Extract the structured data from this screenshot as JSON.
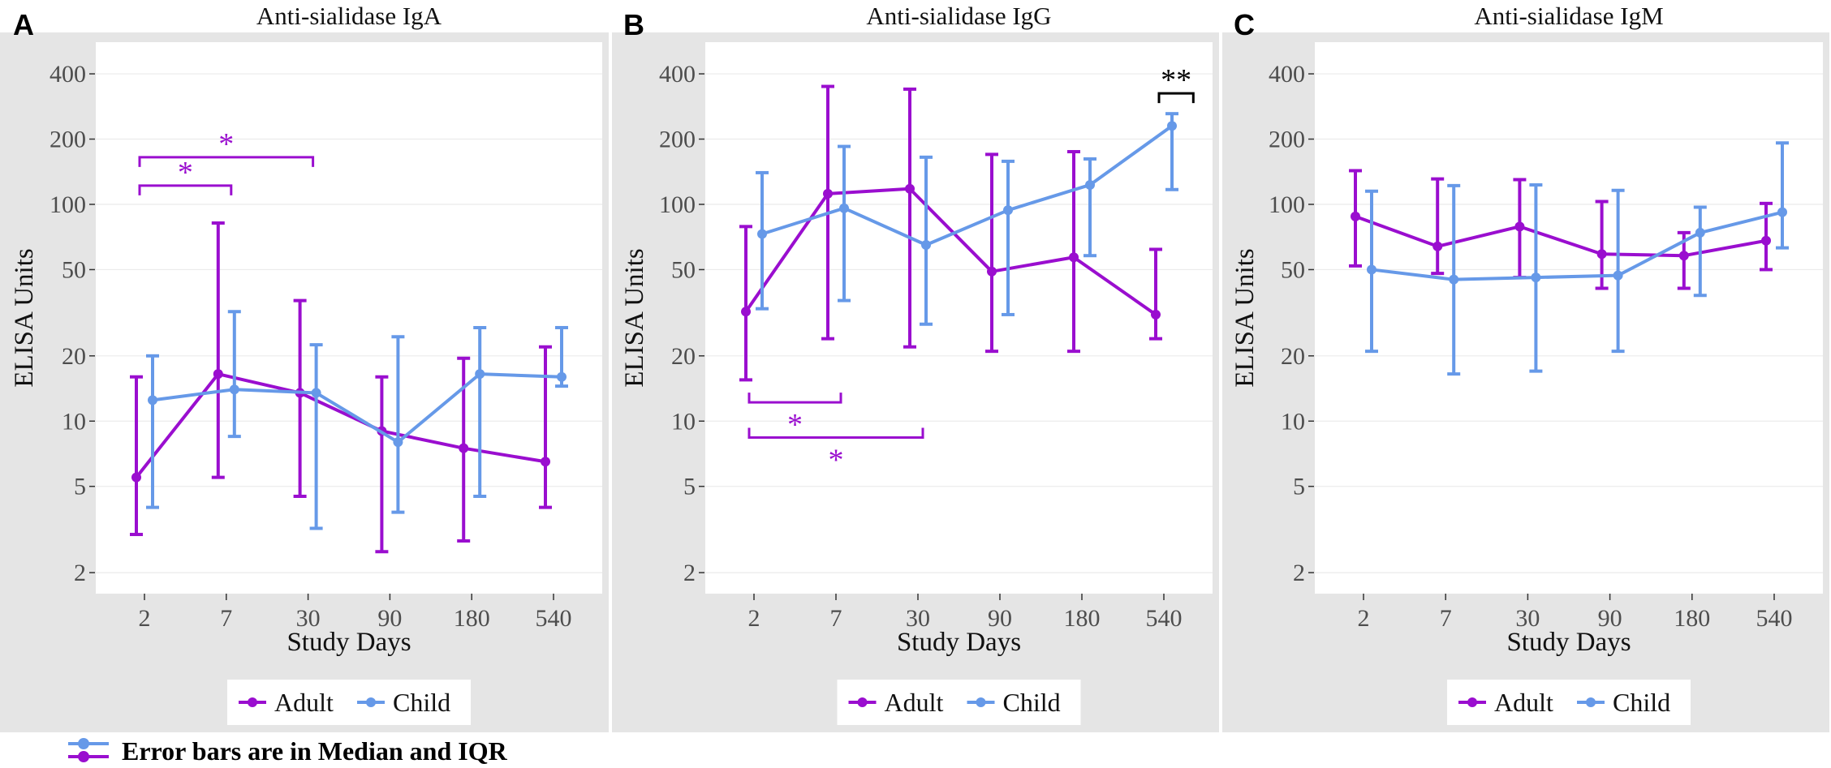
{
  "colors": {
    "adult": "#9A0ECF",
    "child": "#6699E8",
    "panel_bg": "#E5E5E5",
    "plot_bg": "#FFFFFF",
    "grid": "#EBEBEB",
    "text": "#333333",
    "signif_black": "#000000"
  },
  "footer": {
    "note": "Error bars are in Median and IQR"
  },
  "chart_data": [
    {
      "type": "line",
      "panel_label": "A",
      "title": "Anti-sialidase IgA",
      "xlabel": "Study Days",
      "ylabel": "ELISA Units",
      "y_scale": "log10",
      "ylim": [
        1.6,
        560
      ],
      "y_ticks": [
        2,
        5,
        10,
        20,
        50,
        100,
        200,
        400
      ],
      "y_tick_labels": [
        "2",
        "5",
        "10",
        "20",
        "50",
        "100",
        "200",
        "400"
      ],
      "categories": [
        "2",
        "7",
        "30",
        "90",
        "180",
        "540"
      ],
      "legend": {
        "entries": [
          "Adult",
          "Child"
        ],
        "position": "bottom"
      },
      "series": [
        {
          "name": "Adult",
          "color_key": "adult",
          "median": [
            5.5,
            16.5,
            13.5,
            9.0,
            7.5,
            6.5
          ],
          "q1": [
            3.0,
            5.5,
            4.5,
            2.5,
            2.8,
            4.0
          ],
          "q3": [
            16.0,
            82.0,
            36.0,
            16.0,
            19.5,
            22.0
          ]
        },
        {
          "name": "Child",
          "color_key": "child",
          "median": [
            12.5,
            14.0,
            13.5,
            8.0,
            16.5,
            16.0
          ],
          "q1": [
            4.0,
            8.5,
            3.2,
            3.8,
            4.5,
            14.5
          ],
          "q3": [
            20.0,
            32.0,
            22.5,
            24.5,
            27.0,
            27.0
          ]
        }
      ],
      "significance": [
        {
          "from": 0,
          "to": 1,
          "label": "*",
          "color_key": "adult",
          "y": 122,
          "label_pos": "above"
        },
        {
          "from": 0,
          "to": 2,
          "label": "*",
          "color_key": "adult",
          "y": 165,
          "label_pos": "above"
        }
      ]
    },
    {
      "type": "line",
      "panel_label": "B",
      "title": "Anti-sialidase IgG",
      "xlabel": "Study Days",
      "ylabel": "ELISA Units",
      "y_scale": "log10",
      "ylim": [
        1.6,
        560
      ],
      "y_ticks": [
        2,
        5,
        10,
        20,
        50,
        100,
        200,
        400
      ],
      "y_tick_labels": [
        "2",
        "5",
        "10",
        "20",
        "50",
        "100",
        "200",
        "400"
      ],
      "categories": [
        "2",
        "7",
        "30",
        "90",
        "180",
        "540"
      ],
      "legend": {
        "entries": [
          "Adult",
          "Child"
        ],
        "position": "bottom"
      },
      "series": [
        {
          "name": "Adult",
          "color_key": "adult",
          "median": [
            32,
            112,
            118,
            49,
            57,
            31
          ],
          "q1": [
            15.5,
            24,
            22,
            21,
            21,
            24
          ],
          "q3": [
            79,
            350,
            340,
            170,
            175,
            62
          ]
        },
        {
          "name": "Child",
          "color_key": "child",
          "median": [
            73,
            96,
            65,
            94,
            123,
            230
          ],
          "q1": [
            33,
            36,
            28,
            31,
            58,
            117
          ],
          "q3": [
            140,
            185,
            165,
            158,
            162,
            262
          ]
        }
      ],
      "significance": [
        {
          "from": 5,
          "to": 5.3,
          "label": "**",
          "color_key": "signif_black",
          "y": 325,
          "label_pos": "above"
        },
        {
          "from": 0,
          "to": 1,
          "label": "*",
          "color_key": "adult",
          "y": 12.2,
          "label_pos": "below",
          "direction": "up"
        },
        {
          "from": 0,
          "to": 2,
          "label": "*",
          "color_key": "adult",
          "y": 8.4,
          "label_pos": "below",
          "direction": "up"
        }
      ]
    },
    {
      "type": "line",
      "panel_label": "C",
      "title": "Anti-sialidase IgM",
      "xlabel": "Study Days",
      "ylabel": "ELISA Units",
      "y_scale": "log10",
      "ylim": [
        1.6,
        560
      ],
      "y_ticks": [
        2,
        5,
        10,
        20,
        50,
        100,
        200,
        400
      ],
      "y_tick_labels": [
        "2",
        "5",
        "10",
        "20",
        "50",
        "100",
        "200",
        "400"
      ],
      "categories": [
        "2",
        "7",
        "30",
        "90",
        "180",
        "540"
      ],
      "legend": {
        "entries": [
          "Adult",
          "Child"
        ],
        "position": "bottom"
      },
      "series": [
        {
          "name": "Adult",
          "color_key": "adult",
          "median": [
            88,
            64,
            79,
            59,
            58,
            68
          ],
          "q1": [
            52,
            48,
            46,
            41,
            41,
            50
          ],
          "q3": [
            143,
            131,
            130,
            103,
            74,
            101
          ]
        },
        {
          "name": "Child",
          "color_key": "child",
          "median": [
            50,
            45,
            46,
            47,
            74,
            92
          ],
          "q1": [
            21,
            16.5,
            17,
            21,
            38,
            63
          ],
          "q3": [
            115,
            122,
            123,
            116,
            97,
            192
          ]
        }
      ],
      "significance": []
    }
  ]
}
